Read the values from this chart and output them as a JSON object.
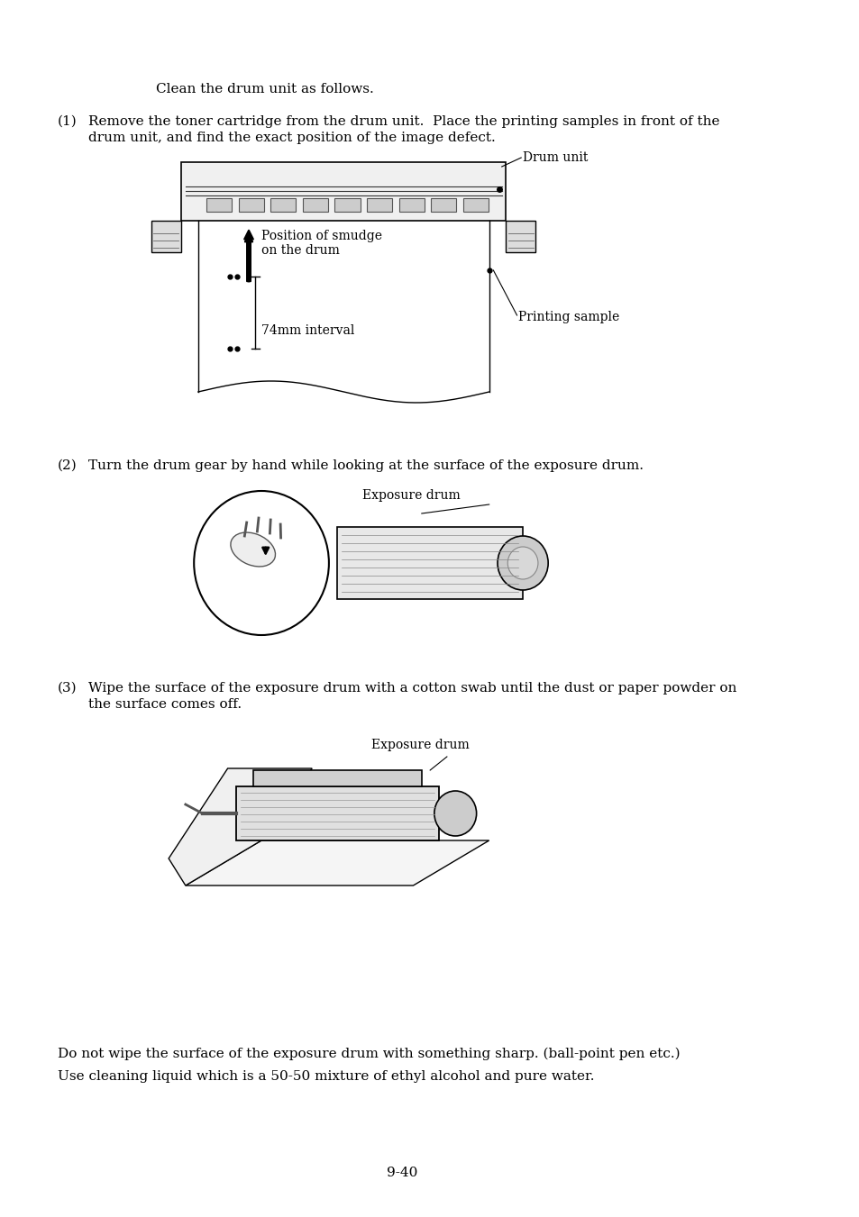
{
  "bg_color": "#ffffff",
  "text_color": "#000000",
  "font_family": "DejaVu Serif",
  "intro_text": "Clean the drum unit as follows.",
  "step1_label": "(1)",
  "step1_text": "Remove the toner cartridge from the drum unit.  Place the printing samples in front of the\n     drum unit, and find the exact position of the image defect.",
  "step2_label": "(2)",
  "step2_text": "Turn the drum gear by hand while looking at the surface of the exposure drum.",
  "step3_label": "(3)",
  "step3_text": "Wipe the surface of the exposure drum with a cotton swab until the dust or paper powder on\n     the surface comes off.",
  "note1": "Do not wipe the surface of the exposure drum with something sharp. (ball-point pen etc.)",
  "note2": "Use cleaning liquid which is a 50-50 mixture of ethyl alcohol and pure water.",
  "page_number": "9-40",
  "drum_unit_label": "Drum unit",
  "position_smudge_label": "Position of smudge\non the drum",
  "interval_label": "74mm interval",
  "printing_sample_label": "Printing sample",
  "exposure_drum_label1": "Exposure drum",
  "exposure_drum_label2": "Exposure drum"
}
